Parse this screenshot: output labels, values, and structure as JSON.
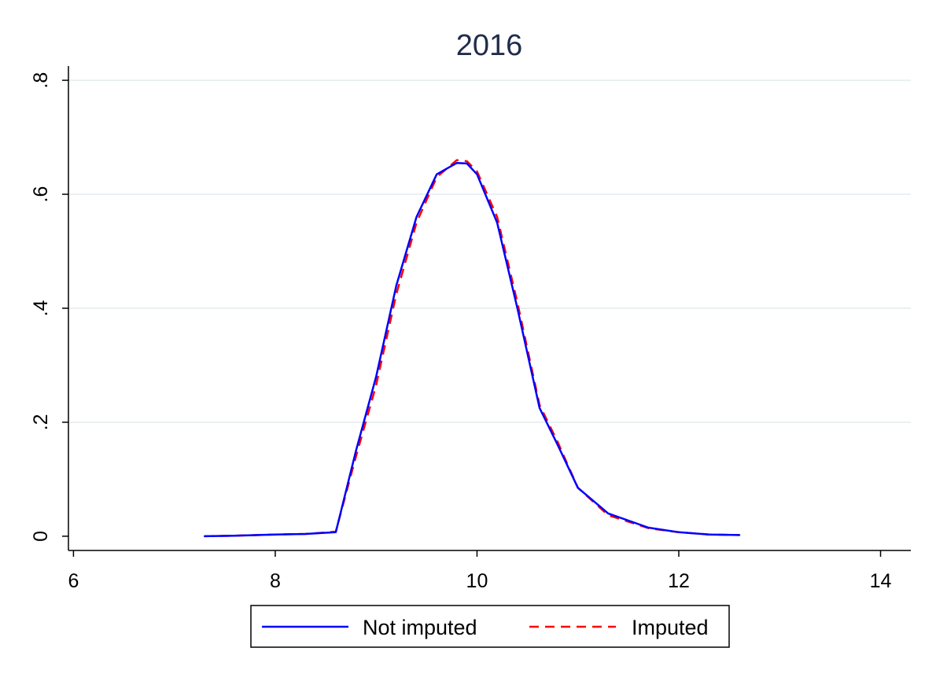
{
  "chart_data": {
    "type": "line",
    "title": "2016",
    "xlabel": "",
    "ylabel": "",
    "xlim": [
      5.95,
      14.3
    ],
    "ylim": [
      -0.025,
      0.825
    ],
    "xticks": [
      6,
      8,
      10,
      12,
      14
    ],
    "xtick_labels": [
      "6",
      "8",
      "10",
      "12",
      "14"
    ],
    "yticks": [
      0,
      0.2,
      0.4,
      0.6,
      0.8
    ],
    "ytick_labels": [
      "0",
      ".2",
      ".4",
      ".6",
      ".8"
    ],
    "grid": "horizontal",
    "legend_position": "bottom",
    "series": [
      {
        "name": "Not imputed",
        "color": "#0000ff",
        "dash": "solid",
        "x": [
          7.3,
          7.6,
          8.0,
          8.3,
          8.6,
          8.8,
          9.0,
          9.2,
          9.4,
          9.6,
          9.8,
          9.9,
          10.0,
          10.2,
          10.4,
          10.62,
          10.8,
          11.0,
          11.3,
          11.7,
          12.0,
          12.3,
          12.6
        ],
        "y": [
          0.0,
          0.001,
          0.003,
          0.004,
          0.007,
          0.15,
          0.28,
          0.44,
          0.56,
          0.635,
          0.655,
          0.654,
          0.635,
          0.55,
          0.4,
          0.225,
          0.16,
          0.085,
          0.04,
          0.015,
          0.007,
          0.003,
          0.002
        ]
      },
      {
        "name": "Imputed",
        "color": "#ff0000",
        "dash": "dashed",
        "x": [
          7.3,
          7.6,
          8.0,
          8.3,
          8.6,
          8.8,
          9.0,
          9.2,
          9.4,
          9.6,
          9.8,
          9.9,
          10.0,
          10.2,
          10.4,
          10.62,
          10.8,
          11.0,
          11.3,
          11.7,
          12.0,
          12.3,
          12.6
        ],
        "y": [
          0.0,
          0.001,
          0.003,
          0.004,
          0.008,
          0.14,
          0.265,
          0.425,
          0.55,
          0.63,
          0.66,
          0.658,
          0.64,
          0.56,
          0.41,
          0.23,
          0.165,
          0.085,
          0.037,
          0.014,
          0.007,
          0.003,
          0.002
        ]
      }
    ]
  }
}
